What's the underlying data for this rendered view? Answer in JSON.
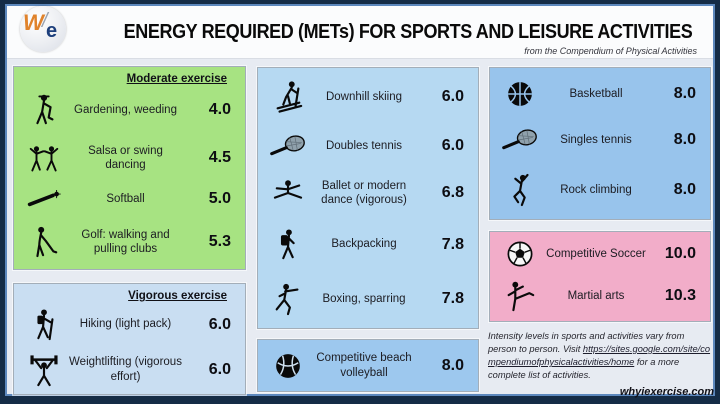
{
  "header": {
    "logo": {
      "w": "W",
      "slash": "/",
      "e": "e"
    },
    "title": "ENERGY REQUIRED (METs) FOR SPORTS AND LEISURE ACTIVITIES",
    "subtitle": "from the Compendium of Physical Activities"
  },
  "colors": {
    "outer_border": "#152c46",
    "inner_border": "#5d88bd",
    "page_background": "#e7ebf2",
    "moderate_panel": "#a7e382",
    "vigorous_panel": "#c9def2",
    "middle_panel": "#b6d9f2",
    "volleyball_panel": "#9dc8ee",
    "right_panel": "#98c4ec",
    "intense_panel": "#f2adc9"
  },
  "panels": [
    {
      "id": "moderate",
      "heading": "Moderate exercise",
      "color": "#a7e382",
      "items": [
        {
          "icon": "gardener-icon",
          "label": "Gardening, weeding",
          "value": "4.0"
        },
        {
          "icon": "dancing-couple-icon",
          "label": "Salsa or swing dancing",
          "value": "4.5"
        },
        {
          "icon": "softball-bat-ball-icon",
          "label": "Softball",
          "value": "5.0"
        },
        {
          "icon": "golfer-icon",
          "label": "Golf: walking and pulling clubs",
          "value": "5.3"
        }
      ]
    },
    {
      "id": "vigorous",
      "heading": "Vigorous exercise",
      "color": "#c9def2",
      "items": [
        {
          "icon": "hiker-icon",
          "label": "Hiking (light pack)",
          "value": "6.0"
        },
        {
          "icon": "weightlifter-icon",
          "label": "Weightlifting (vigorous effort)",
          "value": "6.0"
        }
      ]
    },
    {
      "id": "middle",
      "heading": null,
      "color": "#b6d9f2",
      "items": [
        {
          "icon": "downhill-skier-icon",
          "label": "Downhill skiing",
          "value": "6.0"
        },
        {
          "icon": "tennis-racket-icon",
          "label": "Doubles tennis",
          "value": "6.0"
        },
        {
          "icon": "ballet-dancer-icon",
          "label": "Ballet or modern dance (vigorous)",
          "value": "6.8"
        },
        {
          "icon": "backpacker-icon",
          "label": "Backpacking",
          "value": "7.8"
        },
        {
          "icon": "boxer-icon",
          "label": "Boxing, sparring",
          "value": "7.8"
        }
      ]
    },
    {
      "id": "volleyball",
      "heading": null,
      "color": "#9dc8ee",
      "items": [
        {
          "icon": "volleyball-icon",
          "label": "Competitive beach volleyball",
          "value": "8.0"
        }
      ]
    },
    {
      "id": "right",
      "heading": null,
      "color": "#98c4ec",
      "items": [
        {
          "icon": "basketball-icon",
          "label": "Basketball",
          "value": "8.0"
        },
        {
          "icon": "tennis-racket-icon",
          "label": "Singles tennis",
          "value": "8.0"
        },
        {
          "icon": "rock-climber-icon",
          "label": "Rock climbing",
          "value": "8.0"
        }
      ]
    },
    {
      "id": "intense",
      "heading": null,
      "color": "#f2adc9",
      "items": [
        {
          "icon": "soccer-ball-icon",
          "label": "Competitive Soccer",
          "value": "10.0"
        },
        {
          "icon": "martial-artist-icon",
          "label": "Martial arts",
          "value": "10.3"
        }
      ]
    }
  ],
  "footer": {
    "note_before": "Intensity levels in sports and activities vary from person to person.  Visit ",
    "link": "https://sites.google.com/site/compendiumofphysicalactivities/home",
    "note_after": " for a more complete list of activities.",
    "site": "whyiexercise.com"
  }
}
